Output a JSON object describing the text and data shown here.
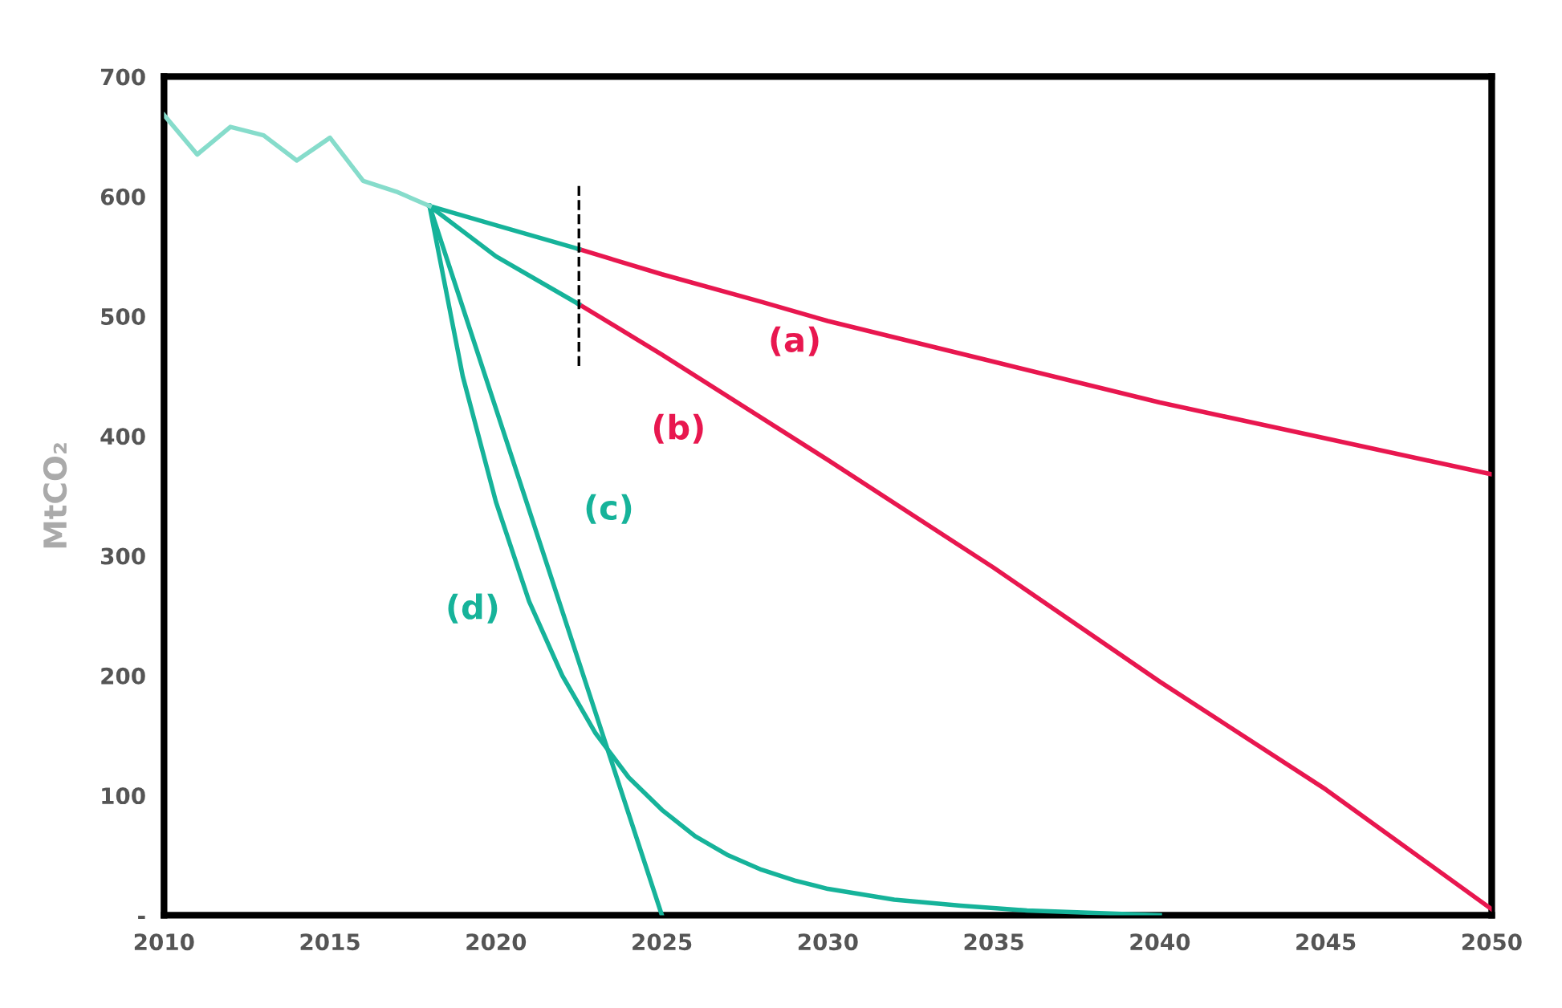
{
  "chart_data": {
    "type": "line",
    "ylabel": "MtCO₂",
    "xlim": [
      2010,
      2050
    ],
    "xticks": [
      2010,
      2015,
      2020,
      2025,
      2030,
      2035,
      2040,
      2045,
      2050
    ],
    "ylim": [
      0,
      700
    ],
    "yticks": [
      {
        "value": 0,
        "label": "-"
      },
      100,
      200,
      300,
      400,
      500,
      600,
      700
    ],
    "grid": false,
    "marker": "none",
    "line_style": "solid",
    "series": [
      {
        "name": "(a)",
        "color": "#e8174f",
        "x": [
          2022.5,
          2025,
          2028,
          2030,
          2035,
          2040,
          2045,
          2050
        ],
        "values": [
          556,
          535,
          512,
          496,
          462,
          428,
          398,
          368
        ]
      },
      {
        "name": "(b)",
        "color": "#e8174f",
        "x": [
          2022.5,
          2025,
          2030,
          2035,
          2040,
          2045,
          2050
        ],
        "values": [
          510,
          468,
          380,
          290,
          195,
          105,
          5
        ]
      },
      {
        "name": "(c)",
        "color": "#16b39a",
        "x": [
          2018,
          2025
        ],
        "values": [
          592,
          0
        ]
      },
      {
        "name": "(d)",
        "color": "#16b39a",
        "x": [
          2018,
          2019,
          2020,
          2021,
          2022,
          2023,
          2024,
          2025,
          2026,
          2027,
          2028,
          2029,
          2030,
          2032,
          2034,
          2036,
          2038,
          2040
        ],
        "values": [
          592,
          450,
          345,
          262,
          200,
          152,
          115,
          88,
          66,
          50,
          38,
          29,
          22,
          13,
          8,
          4,
          2,
          0
        ]
      },
      {
        "color": "#16b39a",
        "x": [
          2018,
          2020,
          2022.5
        ],
        "values": [
          592,
          576,
          556
        ]
      },
      {
        "color": "#16b39a",
        "x": [
          2018,
          2020,
          2022.5
        ],
        "values": [
          592,
          550,
          510
        ]
      },
      {
        "color": "#86dccb",
        "x": [
          2010,
          2011,
          2012,
          2013,
          2014,
          2015,
          2016,
          2017,
          2018
        ],
        "values": [
          668,
          635,
          658,
          651,
          630,
          649,
          613,
          604,
          592
        ]
      }
    ],
    "ref_lines": [
      {
        "axis": "x",
        "value": 2022.5,
        "color": "#000000",
        "line_style": "dashed"
      }
    ]
  }
}
